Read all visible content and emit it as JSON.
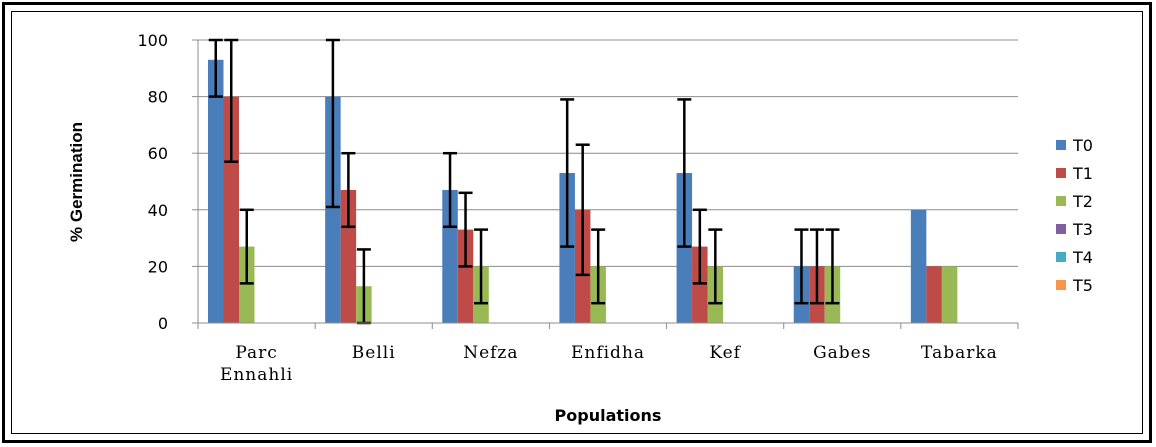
{
  "chart_data": {
    "type": "bar",
    "title": "",
    "xlabel": "Populations",
    "ylabel": "% Germination",
    "ylim": [
      0,
      100
    ],
    "yticks": [
      0,
      20,
      40,
      60,
      80,
      100
    ],
    "grid": true,
    "legend_position": "right",
    "categories": [
      "Parc Ennahli",
      "Belli",
      "Nefza",
      "Enfidha",
      "Kef",
      "Gabes",
      "Tabarka"
    ],
    "category_lines": [
      [
        "Parc",
        "Ennahli"
      ],
      [
        "Belli"
      ],
      [
        "Nefza"
      ],
      [
        "Enfidha"
      ],
      [
        "Kef"
      ],
      [
        "Gabes"
      ],
      [
        "Tabarka"
      ]
    ],
    "series": [
      {
        "name": "T0",
        "color": "#4a7ebb",
        "values": [
          93,
          80,
          47,
          53,
          53,
          20,
          40
        ],
        "errors": [
          13,
          39,
          13,
          26,
          26,
          13,
          null
        ]
      },
      {
        "name": "T1",
        "color": "#be4b48",
        "values": [
          80,
          47,
          33,
          40,
          27,
          20,
          20
        ],
        "errors": [
          23,
          13,
          13,
          23,
          13,
          13,
          null
        ]
      },
      {
        "name": "T2",
        "color": "#98b954",
        "values": [
          27,
          13,
          20,
          20,
          20,
          20,
          20
        ],
        "errors": [
          13,
          13,
          13,
          13,
          13,
          13,
          null
        ]
      },
      {
        "name": "T3",
        "color": "#7d60a0",
        "values": [
          0,
          0,
          0,
          0,
          0,
          0,
          0
        ],
        "errors": [
          null,
          null,
          null,
          null,
          null,
          null,
          null
        ]
      },
      {
        "name": "T4",
        "color": "#46aac5",
        "values": [
          0,
          0,
          0,
          0,
          0,
          0,
          0
        ],
        "errors": [
          null,
          null,
          null,
          null,
          null,
          null,
          null
        ]
      },
      {
        "name": "T5",
        "color": "#f79646",
        "values": [
          0,
          0,
          0,
          0,
          0,
          0,
          0
        ],
        "errors": [
          null,
          null,
          null,
          null,
          null,
          null,
          null
        ]
      }
    ]
  }
}
